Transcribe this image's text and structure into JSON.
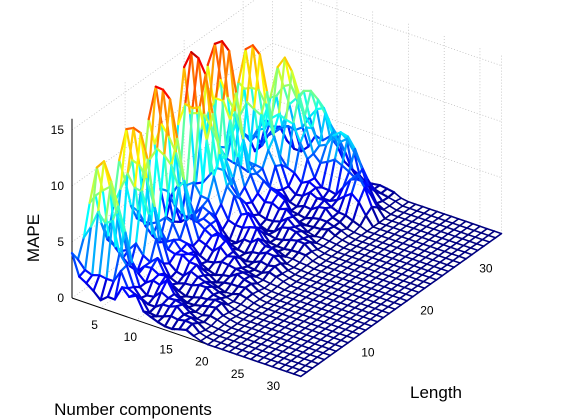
{
  "chart_data": {
    "type": "surface",
    "title": "",
    "xlabel": "Length",
    "ylabel": "Number components",
    "zlabel": "MAPE",
    "xlim": [
      1,
      35
    ],
    "ylim": [
      1,
      33
    ],
    "zlim": [
      0,
      16
    ],
    "x_ticks": [
      "10",
      "20",
      "30"
    ],
    "y_ticks": [
      "5",
      "10",
      "15",
      "20",
      "25",
      "30"
    ],
    "z_ticks": [
      "0",
      "5",
      "10",
      "15"
    ],
    "colormap": "jet",
    "grid": true,
    "peaks": [
      {
        "length": 4,
        "components": 3,
        "mape": 8.3
      },
      {
        "length": 9,
        "components": 3,
        "mape": 10.3
      },
      {
        "length": 14,
        "components": 3,
        "mape": 11.8
      },
      {
        "length": 20,
        "components": 3,
        "mape": 13.0
      },
      {
        "length": 24,
        "components": 3,
        "mape": 12.2
      },
      {
        "length": 28,
        "components": 4,
        "mape": 10.0
      },
      {
        "length": 31,
        "components": 6,
        "mape": 9.0
      },
      {
        "length": 33,
        "components": 8,
        "mape": 7.5
      },
      {
        "length": 32,
        "components": 13,
        "mape": 5.0
      },
      {
        "length": 30,
        "components": 18,
        "mape": 3.5
      },
      {
        "length": 33,
        "components": 24,
        "mape": 2.5
      }
    ],
    "zero_region": "components >= 20 is near 0 for all lengths",
    "edge_colors": {
      "low": "#00008f",
      "mid": "#00ffff",
      "high": "#800000"
    }
  }
}
